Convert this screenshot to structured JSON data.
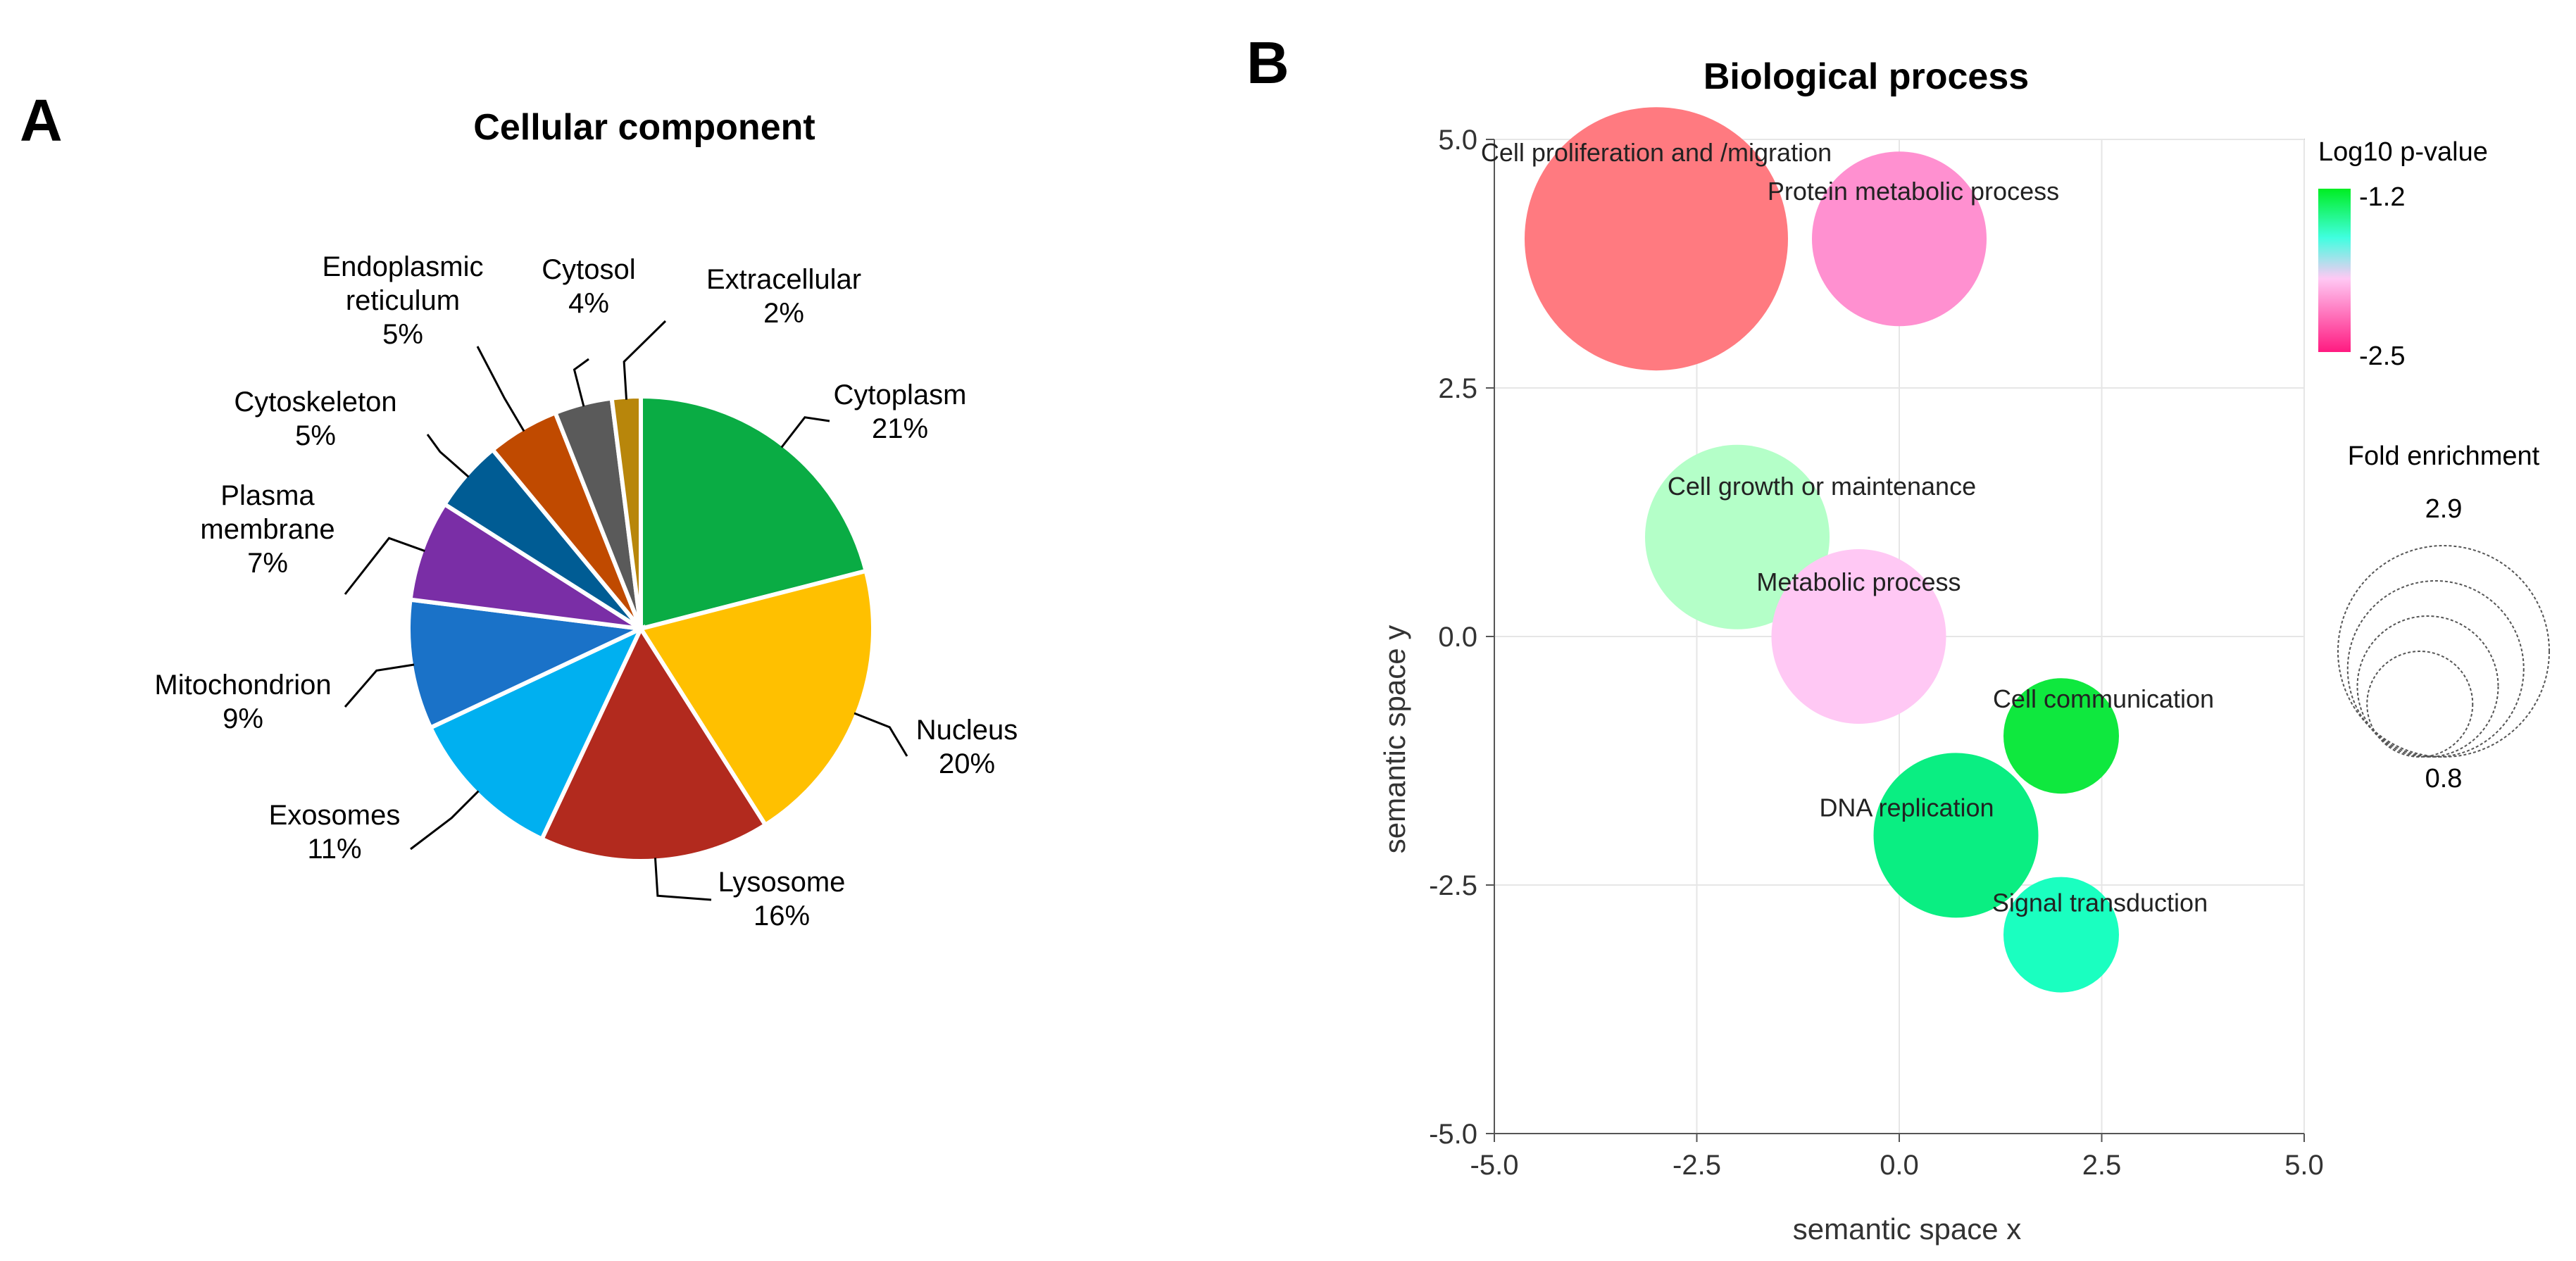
{
  "panel_a_letter": "A",
  "panel_b_letter": "B",
  "legend": {
    "color_title": "Log10 p-value",
    "color_max": "-1.2",
    "color_min": "-2.5",
    "colors": [
      "#00ee22",
      "#40ffe0",
      "#ffc8f4",
      "#ff1a80"
    ],
    "size_title": "Fold enrichment",
    "size_max": "2.9",
    "size_min": "0.8"
  },
  "chart_data": [
    {
      "type": "pie",
      "title": "Cellular component",
      "slices": [
        {
          "name": "Cytoplasm",
          "lines": [
            "Cytoplasm"
          ],
          "pct_label": "21%",
          "value": 21,
          "color": "#0aac44"
        },
        {
          "name": "Nucleus",
          "lines": [
            "Nucleus"
          ],
          "pct_label": "20%",
          "value": 20,
          "color": "#ffc000"
        },
        {
          "name": "Lysosome",
          "lines": [
            "Lysosome"
          ],
          "pct_label": "16%",
          "value": 16,
          "color": "#b22a1e"
        },
        {
          "name": "Exosomes",
          "lines": [
            "Exosomes"
          ],
          "pct_label": "11%",
          "value": 11,
          "color": "#00b0f0"
        },
        {
          "name": "Mitochondrion",
          "lines": [
            "Mitochondrion"
          ],
          "pct_label": "9%",
          "value": 9,
          "color": "#1a72c8"
        },
        {
          "name": "Plasma membrane",
          "lines": [
            "Plasma",
            "membrane"
          ],
          "pct_label": "7%",
          "value": 7,
          "color": "#7a2ea6"
        },
        {
          "name": "Cytoskeleton",
          "lines": [
            "Cytoskeleton"
          ],
          "pct_label": "5%",
          "value": 5,
          "color": "#005c94"
        },
        {
          "name": "Endoplasmic reticulum",
          "lines": [
            "Endoplasmic",
            "reticulum"
          ],
          "pct_label": "5%",
          "value": 5,
          "color": "#c04a00"
        },
        {
          "name": "Cytosol",
          "lines": [
            "Cytosol"
          ],
          "pct_label": "4%",
          "value": 4,
          "color": "#5a5a5a"
        },
        {
          "name": "Extracellular",
          "lines": [
            "Extracellular"
          ],
          "pct_label": "2%",
          "value": 2,
          "color": "#b8860b"
        }
      ]
    },
    {
      "type": "scatter",
      "title": "Biological process",
      "xlabel": "semantic space x",
      "ylabel": "semantic space y",
      "xlim": [
        -5.0,
        5.0
      ],
      "ylim": [
        -5.0,
        5.0
      ],
      "x_ticks": [
        "-5.0",
        "-2.5",
        "0.0",
        "2.5",
        "5.0"
      ],
      "y_ticks": [
        "-5.0",
        "-2.5",
        "0.0",
        "2.5",
        "5.0"
      ],
      "grid": true,
      "points": [
        {
          "label": "Cell proliferation and /migration",
          "x": -3.0,
          "y": 4.0,
          "fold_enrichment": 2.9,
          "color": "#ff7a80"
        },
        {
          "label": "Protein metabolic process",
          "x": 0.0,
          "y": 4.0,
          "fold_enrichment": 2.0,
          "color": "#ff90d0"
        },
        {
          "label": "Cell growth or maintenance",
          "x": -2.0,
          "y": 1.0,
          "fold_enrichment": 2.1,
          "color": "#b4ffc8"
        },
        {
          "label": "Metabolic process",
          "x": -0.5,
          "y": 0.0,
          "fold_enrichment": 2.0,
          "color": "#ffc8f4"
        },
        {
          "label": "Cell communication",
          "x": 2.0,
          "y": -1.0,
          "fold_enrichment": 1.4,
          "color": "#0fe83e"
        },
        {
          "label": "DNA replication",
          "x": 0.7,
          "y": -2.0,
          "fold_enrichment": 1.9,
          "color": "#0aee82"
        },
        {
          "label": "Signal transduction",
          "x": 2.0,
          "y": -3.0,
          "fold_enrichment": 1.4,
          "color": "#1affc0"
        }
      ]
    }
  ]
}
